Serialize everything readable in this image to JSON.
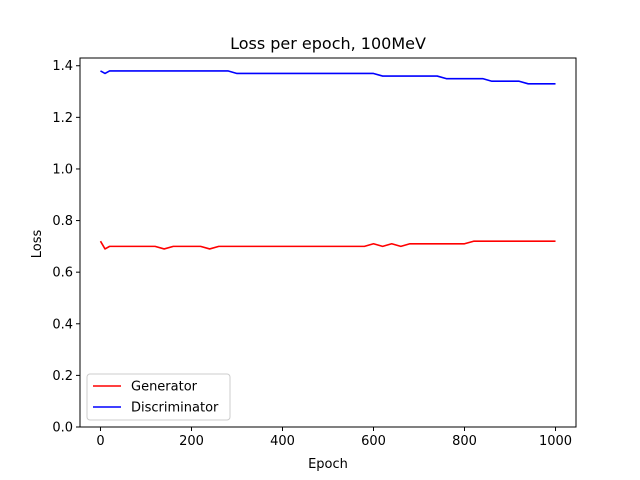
{
  "chart_data": {
    "type": "line",
    "title": "Loss per epoch, 100MeV",
    "xlabel": "Epoch",
    "ylabel": "Loss",
    "xlim": [
      -45,
      1045
    ],
    "ylim": [
      0,
      1.43
    ],
    "xticks": [
      0,
      200,
      400,
      600,
      800,
      1000
    ],
    "yticks": [
      0.0,
      0.2,
      0.4,
      0.6,
      0.8,
      1.0,
      1.2,
      1.4
    ],
    "xtick_labels": [
      "0",
      "200",
      "400",
      "600",
      "800",
      "1000"
    ],
    "ytick_labels": [
      "0.0",
      "0.2",
      "0.4",
      "0.6",
      "0.8",
      "1.0",
      "1.2",
      "1.4"
    ],
    "grid": false,
    "legend": "lower-left",
    "series": [
      {
        "name": "Generator",
        "color": "#ff0000",
        "x": [
          0,
          10,
          20,
          40,
          60,
          80,
          100,
          120,
          140,
          160,
          180,
          200,
          220,
          240,
          260,
          280,
          300,
          320,
          340,
          360,
          380,
          400,
          420,
          440,
          460,
          480,
          500,
          520,
          540,
          560,
          580,
          600,
          620,
          640,
          660,
          680,
          700,
          720,
          740,
          760,
          780,
          800,
          820,
          840,
          860,
          880,
          900,
          920,
          940,
          960,
          980,
          1000
        ],
        "y": [
          0.72,
          0.69,
          0.7,
          0.7,
          0.7,
          0.7,
          0.7,
          0.7,
          0.69,
          0.7,
          0.7,
          0.7,
          0.7,
          0.69,
          0.7,
          0.7,
          0.7,
          0.7,
          0.7,
          0.7,
          0.7,
          0.7,
          0.7,
          0.7,
          0.7,
          0.7,
          0.7,
          0.7,
          0.7,
          0.7,
          0.7,
          0.71,
          0.7,
          0.71,
          0.7,
          0.71,
          0.71,
          0.71,
          0.71,
          0.71,
          0.71,
          0.71,
          0.72,
          0.72,
          0.72,
          0.72,
          0.72,
          0.72,
          0.72,
          0.72,
          0.72,
          0.72
        ]
      },
      {
        "name": "Discriminator",
        "color": "#0000ff",
        "x": [
          0,
          10,
          20,
          40,
          60,
          80,
          100,
          120,
          140,
          160,
          180,
          200,
          220,
          240,
          260,
          280,
          300,
          320,
          340,
          360,
          380,
          400,
          420,
          440,
          460,
          480,
          500,
          520,
          540,
          560,
          580,
          600,
          620,
          640,
          660,
          680,
          700,
          720,
          740,
          760,
          780,
          800,
          820,
          840,
          860,
          880,
          900,
          920,
          940,
          960,
          980,
          1000
        ],
        "y": [
          1.38,
          1.37,
          1.38,
          1.38,
          1.38,
          1.38,
          1.38,
          1.38,
          1.38,
          1.38,
          1.38,
          1.38,
          1.38,
          1.38,
          1.38,
          1.38,
          1.37,
          1.37,
          1.37,
          1.37,
          1.37,
          1.37,
          1.37,
          1.37,
          1.37,
          1.37,
          1.37,
          1.37,
          1.37,
          1.37,
          1.37,
          1.37,
          1.36,
          1.36,
          1.36,
          1.36,
          1.36,
          1.36,
          1.36,
          1.35,
          1.35,
          1.35,
          1.35,
          1.35,
          1.34,
          1.34,
          1.34,
          1.34,
          1.33,
          1.33,
          1.33,
          1.33
        ]
      }
    ]
  }
}
